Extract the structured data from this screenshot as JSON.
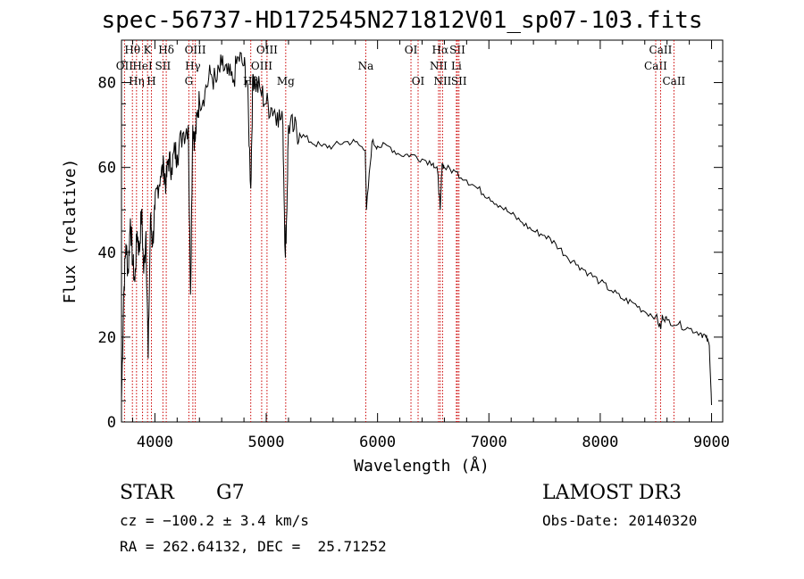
{
  "chart_data": {
    "type": "line",
    "title": "spec-56737-HD172545N271812V01_sp07-103.fits",
    "xlabel": "Wavelength (Å)",
    "ylabel": "Flux (relative)",
    "xlim": [
      3700,
      9100
    ],
    "ylim": [
      0,
      90
    ],
    "xticks": [
      "4000",
      "5000",
      "6000",
      "7000",
      "8000",
      "9000"
    ],
    "yticks": [
      "0",
      "20",
      "40",
      "60",
      "80"
    ],
    "series": [
      {
        "name": "spectrum",
        "x": [
          3700,
          3720,
          3740,
          3760,
          3780,
          3800,
          3820,
          3840,
          3860,
          3880,
          3900,
          3920,
          3940,
          3960,
          3980,
          4000,
          4020,
          4050,
          4080,
          4100,
          4120,
          4150,
          4180,
          4200,
          4250,
          4300,
          4320,
          4340,
          4360,
          4380,
          4400,
          4450,
          4500,
          4550,
          4600,
          4650,
          4700,
          4750,
          4800,
          4830,
          4861,
          4880,
          4900,
          4950,
          5000,
          5050,
          5100,
          5150,
          5170,
          5183,
          5200,
          5250,
          5300,
          5400,
          5500,
          5600,
          5700,
          5800,
          5890,
          5900,
          5950,
          6000,
          6100,
          6200,
          6300,
          6400,
          6500,
          6540,
          6563,
          6580,
          6600,
          6700,
          6800,
          6900,
          7000,
          7100,
          7200,
          7300,
          7400,
          7500,
          7600,
          7700,
          7800,
          7900,
          8000,
          8100,
          8200,
          8300,
          8400,
          8500,
          8542,
          8560,
          8600,
          8700,
          8800,
          8900,
          8950,
          8980,
          9000
        ],
        "y": [
          5,
          30,
          42,
          35,
          48,
          38,
          33,
          45,
          40,
          50,
          35,
          45,
          15,
          48,
          42,
          50,
          55,
          58,
          60,
          56,
          62,
          60,
          64,
          63,
          68,
          70,
          30,
          70,
          66,
          72,
          76,
          78,
          82,
          80,
          84,
          82,
          80,
          86,
          84,
          80,
          55,
          82,
          80,
          78,
          75,
          74,
          73,
          70,
          40,
          48,
          70,
          69,
          68,
          66,
          65,
          65,
          66,
          66,
          64,
          50,
          66,
          65,
          65,
          63,
          63,
          62,
          61,
          59,
          50,
          61,
          60,
          59,
          57,
          55,
          53,
          51,
          49,
          47,
          45,
          44,
          42,
          39,
          37,
          35,
          33,
          31,
          29,
          28,
          26,
          25,
          22,
          25,
          24,
          23,
          22,
          21,
          20,
          18,
          4
        ]
      }
    ],
    "lines": [
      {
        "name": "Hθ",
        "wl": 3798,
        "row": 0
      },
      {
        "name": "OII",
        "wl": 3727,
        "row": 1
      },
      {
        "name": "Hη",
        "wl": 3835,
        "row": 2
      },
      {
        "name": "HeI",
        "wl": 3889,
        "row": 1
      },
      {
        "name": "K",
        "wl": 3934,
        "row": 0
      },
      {
        "name": "H",
        "wl": 3969,
        "row": 2
      },
      {
        "name": "SII",
        "wl": 4072,
        "row": 1
      },
      {
        "name": "Hδ",
        "wl": 4102,
        "row": 0
      },
      {
        "name": "OIII",
        "wl": 4363,
        "row": 0
      },
      {
        "name": "Hγ",
        "wl": 4341,
        "row": 1
      },
      {
        "name": "G",
        "wl": 4305,
        "row": 2
      },
      {
        "name": "Hβ",
        "wl": 4861,
        "row": 2
      },
      {
        "name": "OIII",
        "wl": 4959,
        "row": 1
      },
      {
        "name": "OIII",
        "wl": 5007,
        "row": 0
      },
      {
        "name": "Mg",
        "wl": 5175,
        "row": 2
      },
      {
        "name": "Na",
        "wl": 5894,
        "row": 1
      },
      {
        "name": "OI",
        "wl": 6300,
        "row": 0
      },
      {
        "name": "OI",
        "wl": 6364,
        "row": 2
      },
      {
        "name": "NII",
        "wl": 6548,
        "row": 1
      },
      {
        "name": "Hα",
        "wl": 6563,
        "row": 0
      },
      {
        "name": "NII",
        "wl": 6584,
        "row": 2
      },
      {
        "name": "SII",
        "wl": 6717,
        "row": 0
      },
      {
        "name": "Li",
        "wl": 6708,
        "row": 1
      },
      {
        "name": "SII",
        "wl": 6731,
        "row": 2
      },
      {
        "name": "CaII",
        "wl": 8498,
        "row": 1
      },
      {
        "name": "CaII",
        "wl": 8542,
        "row": 0
      },
      {
        "name": "CaII",
        "wl": 8662,
        "row": 2
      }
    ]
  },
  "info": {
    "object_class": "STAR",
    "subclass": "G7",
    "survey": "LAMOST DR3",
    "cz": "cz = −100.2 ± 3.4 km/s",
    "obs_date": "Obs-Date: 20140320",
    "coords": "RA = 262.64132, DEC =  25.71252"
  }
}
